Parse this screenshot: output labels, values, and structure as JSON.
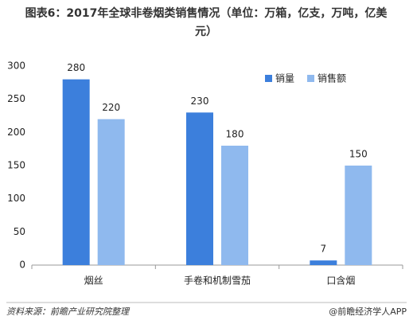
{
  "chart_data": {
    "type": "bar",
    "title": "图表6：2017年全球非卷烟类销售情况（单位：万箱，亿支，万吨，亿美元）",
    "categories": [
      "烟丝",
      "手卷和机制雪茄",
      "口含烟"
    ],
    "series": [
      {
        "name": "销量",
        "color": "#3c7fdc",
        "values": [
          280,
          230,
          7
        ]
      },
      {
        "name": "销售额",
        "color": "#8fb9ee",
        "values": [
          220,
          180,
          150
        ]
      }
    ],
    "ylim": [
      0,
      300
    ],
    "yticks": [
      0,
      50,
      100,
      150,
      200,
      250,
      300
    ],
    "grid": false,
    "legend": "top-right"
  },
  "footer": {
    "source": "资料来源：前瞻产业研究院整理",
    "brand": "@前瞻经济学人APP"
  }
}
